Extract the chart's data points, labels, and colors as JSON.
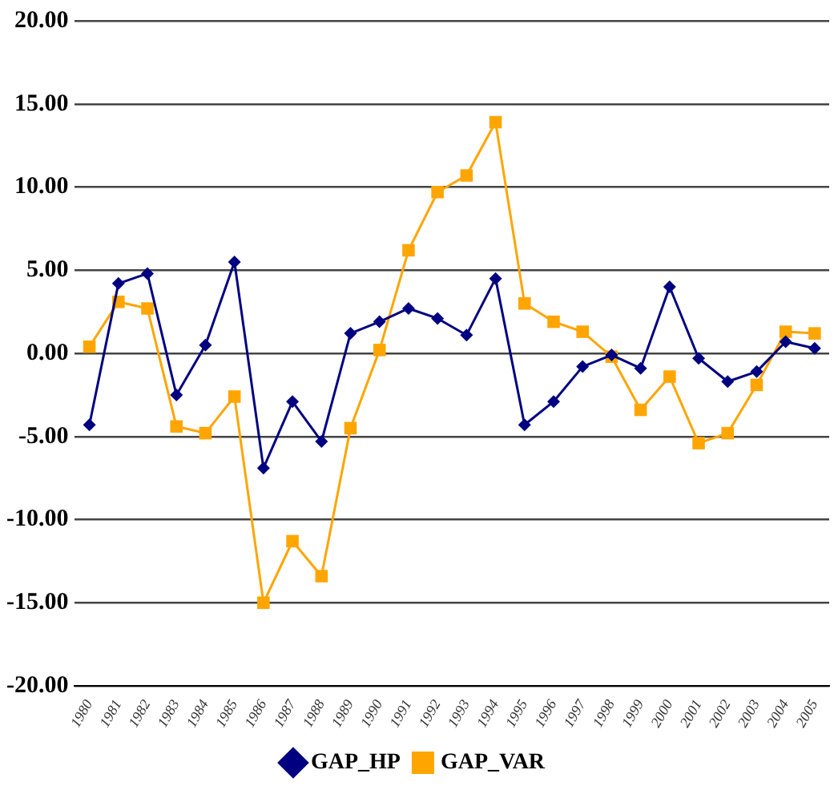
{
  "chart_data": {
    "type": "line",
    "categories": [
      "1980",
      "1981",
      "1982",
      "1983",
      "1984",
      "1985",
      "1986",
      "1987",
      "1988",
      "1989",
      "1990",
      "1991",
      "1992",
      "1993",
      "1994",
      "1995",
      "1996",
      "1997",
      "1998",
      "1999",
      "2000",
      "2001",
      "2002",
      "2003",
      "2004",
      "2005"
    ],
    "series": [
      {
        "name": "GAP_HP",
        "color": "#000080",
        "marker": "diamond",
        "values": [
          -4.3,
          4.2,
          4.8,
          -2.5,
          0.5,
          5.5,
          -6.9,
          -2.9,
          -5.3,
          1.2,
          1.9,
          2.7,
          2.1,
          1.1,
          4.5,
          -4.3,
          -2.9,
          -0.8,
          -0.1,
          -0.9,
          4.0,
          -0.3,
          -1.7,
          -1.1,
          0.7,
          0.3
        ]
      },
      {
        "name": "GAP_VAR",
        "color": "#ffa500",
        "marker": "square",
        "values": [
          0.4,
          3.1,
          2.7,
          -4.4,
          -4.8,
          -2.6,
          -15.0,
          -11.3,
          -13.4,
          -4.5,
          0.2,
          6.2,
          9.7,
          10.7,
          13.9,
          3.0,
          1.9,
          1.3,
          -0.2,
          -3.4,
          -1.4,
          -5.4,
          -4.8,
          -1.9,
          1.3,
          1.2
        ]
      }
    ],
    "ylim": [
      -20,
      20
    ],
    "yticks": [
      {
        "value": -20,
        "label": "-20.00"
      },
      {
        "value": -15,
        "label": "-15.00"
      },
      {
        "value": -10,
        "label": "-10.00"
      },
      {
        "value": -5,
        "label": "-5.00"
      },
      {
        "value": 0,
        "label": "0.00"
      },
      {
        "value": 5,
        "label": "5.00"
      },
      {
        "value": 10,
        "label": "10.00"
      },
      {
        "value": 15,
        "label": "15.00"
      },
      {
        "value": 20,
        "label": "20.00"
      }
    ],
    "grid": "y",
    "legend": "bottom",
    "line_style": "solid"
  }
}
